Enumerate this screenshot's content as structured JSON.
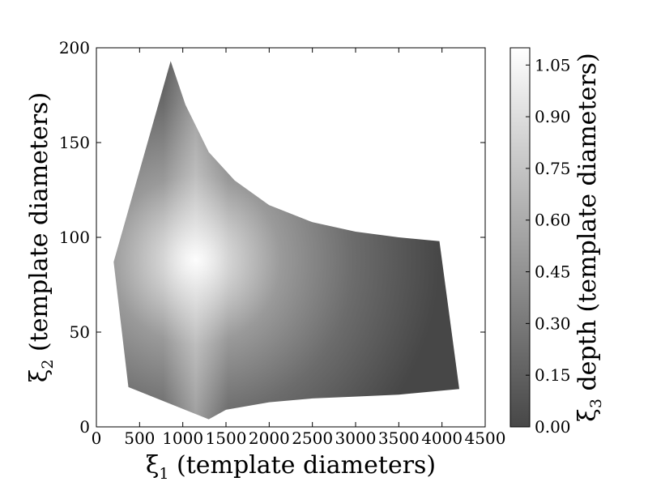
{
  "chart_data": {
    "type": "heatmap",
    "xlabel": {
      "symbol": "ξ",
      "subscript": "1",
      "text": " (template diameters)"
    },
    "ylabel": {
      "symbol": "ξ",
      "subscript": "2",
      "text": " (template diameters)"
    },
    "colorbar_label": {
      "symbol": "ξ",
      "subscript": "3",
      "text": " depth (template diameters)"
    },
    "xlim": [
      0,
      4500
    ],
    "ylim": [
      0,
      200
    ],
    "clim": [
      0,
      1.1
    ],
    "xticks": [
      0,
      500,
      1000,
      1500,
      2000,
      2500,
      3000,
      3500,
      4000,
      4500
    ],
    "xtick_labels": [
      "0",
      "500",
      "1000",
      "1500",
      "2000",
      "2500",
      "3000",
      "3500",
      "4000",
      "4500"
    ],
    "yticks": [
      0,
      50,
      100,
      150,
      200
    ],
    "ytick_labels": [
      "0",
      "50",
      "100",
      "150",
      "200"
    ],
    "cticks": [
      0.0,
      0.15,
      0.3,
      0.45,
      0.6,
      0.75,
      0.9,
      1.05
    ],
    "ctick_labels": [
      "0.00",
      "0.15",
      "0.30",
      "0.45",
      "0.60",
      "0.75",
      "0.90",
      "1.05"
    ],
    "colormap": {
      "low": "#474747",
      "high": "#ffffff"
    },
    "region_boundary": [
      [
        860,
        193
      ],
      [
        1030,
        170
      ],
      [
        1300,
        145
      ],
      [
        1600,
        130
      ],
      [
        2000,
        117
      ],
      [
        2500,
        108
      ],
      [
        3000,
        103
      ],
      [
        3500,
        100
      ],
      [
        3970,
        98
      ],
      [
        4200,
        20
      ],
      [
        3500,
        17
      ],
      [
        3000,
        16
      ],
      [
        2500,
        15
      ],
      [
        2000,
        13
      ],
      [
        1500,
        9
      ],
      [
        1300,
        4
      ],
      [
        370,
        21
      ],
      [
        200,
        87
      ]
    ],
    "peak": {
      "x": 1150,
      "y": 88,
      "value": 1.1
    },
    "grid": false
  }
}
